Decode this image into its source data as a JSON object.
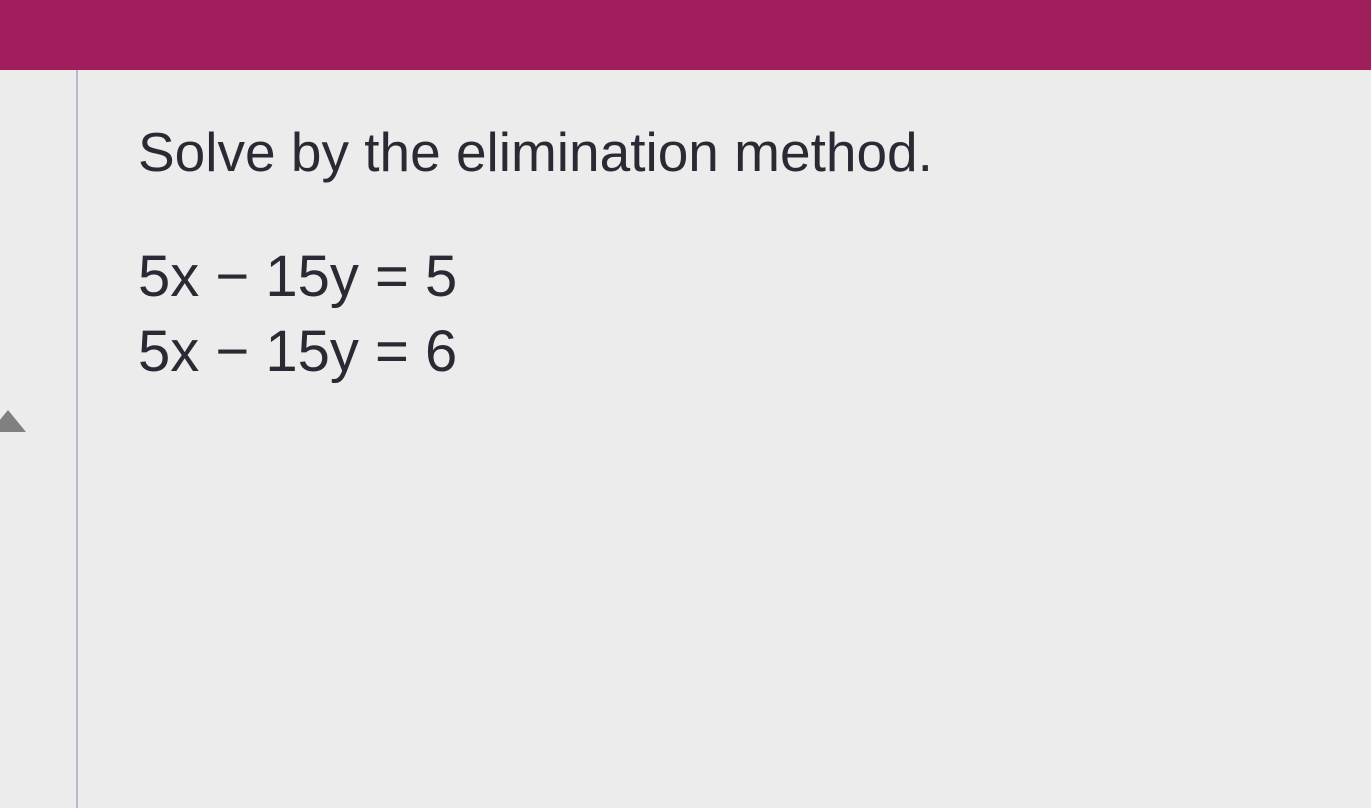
{
  "header": {
    "bar_color": "#a01e5c"
  },
  "problem": {
    "instruction": "Solve by the elimination method.",
    "equations": [
      "5x − 15y =  5",
      "5x − 15y =  6"
    ]
  },
  "layout": {
    "background_color": "#ececec",
    "margin_line_color": "#b8b8d0",
    "text_color": "#2a2a35",
    "instruction_fontsize": 55,
    "equation_fontsize": 58
  }
}
